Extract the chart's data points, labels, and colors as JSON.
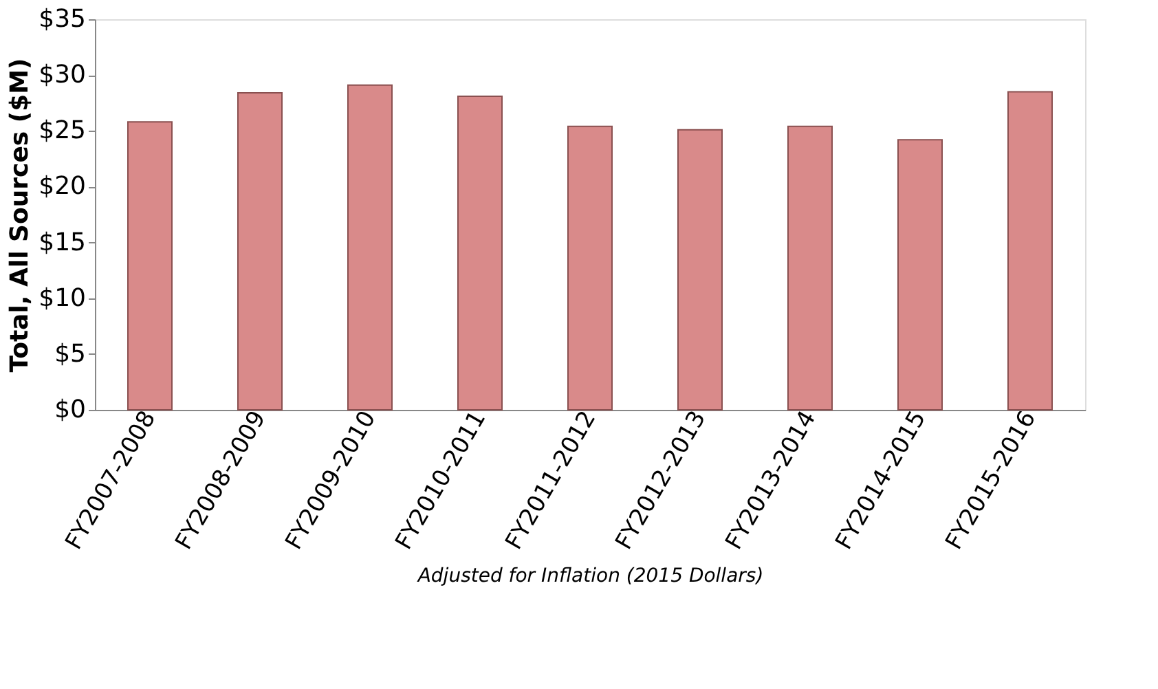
{
  "chart_data": {
    "type": "bar",
    "xlabel": "Adjusted for Inflation (2015 Dollars)",
    "ylabel": "Total, All Sources ($M)",
    "categories": [
      "FY2007-2008",
      "FY2008-2009",
      "FY2009-2010",
      "FY2010-2011",
      "FY2011-2012",
      "FY2012-2013",
      "FY2013-2014",
      "FY2014-2015",
      "FY2015-2016"
    ],
    "values": [
      25.8,
      28.4,
      29.1,
      28.1,
      25.4,
      25.1,
      25.4,
      24.2,
      28.5
    ],
    "color": "#d98a8a",
    "ylim": [
      0,
      35
    ],
    "yticks": [
      {
        "value": 0,
        "label": "$0"
      },
      {
        "value": 5,
        "label": "$5"
      },
      {
        "value": 10,
        "label": "$10"
      },
      {
        "value": 15,
        "label": "$15"
      },
      {
        "value": 20,
        "label": "$20"
      },
      {
        "value": 25,
        "label": "$25"
      },
      {
        "value": 30,
        "label": "$30"
      },
      {
        "value": 35,
        "label": "$35"
      }
    ],
    "grid": false
  }
}
